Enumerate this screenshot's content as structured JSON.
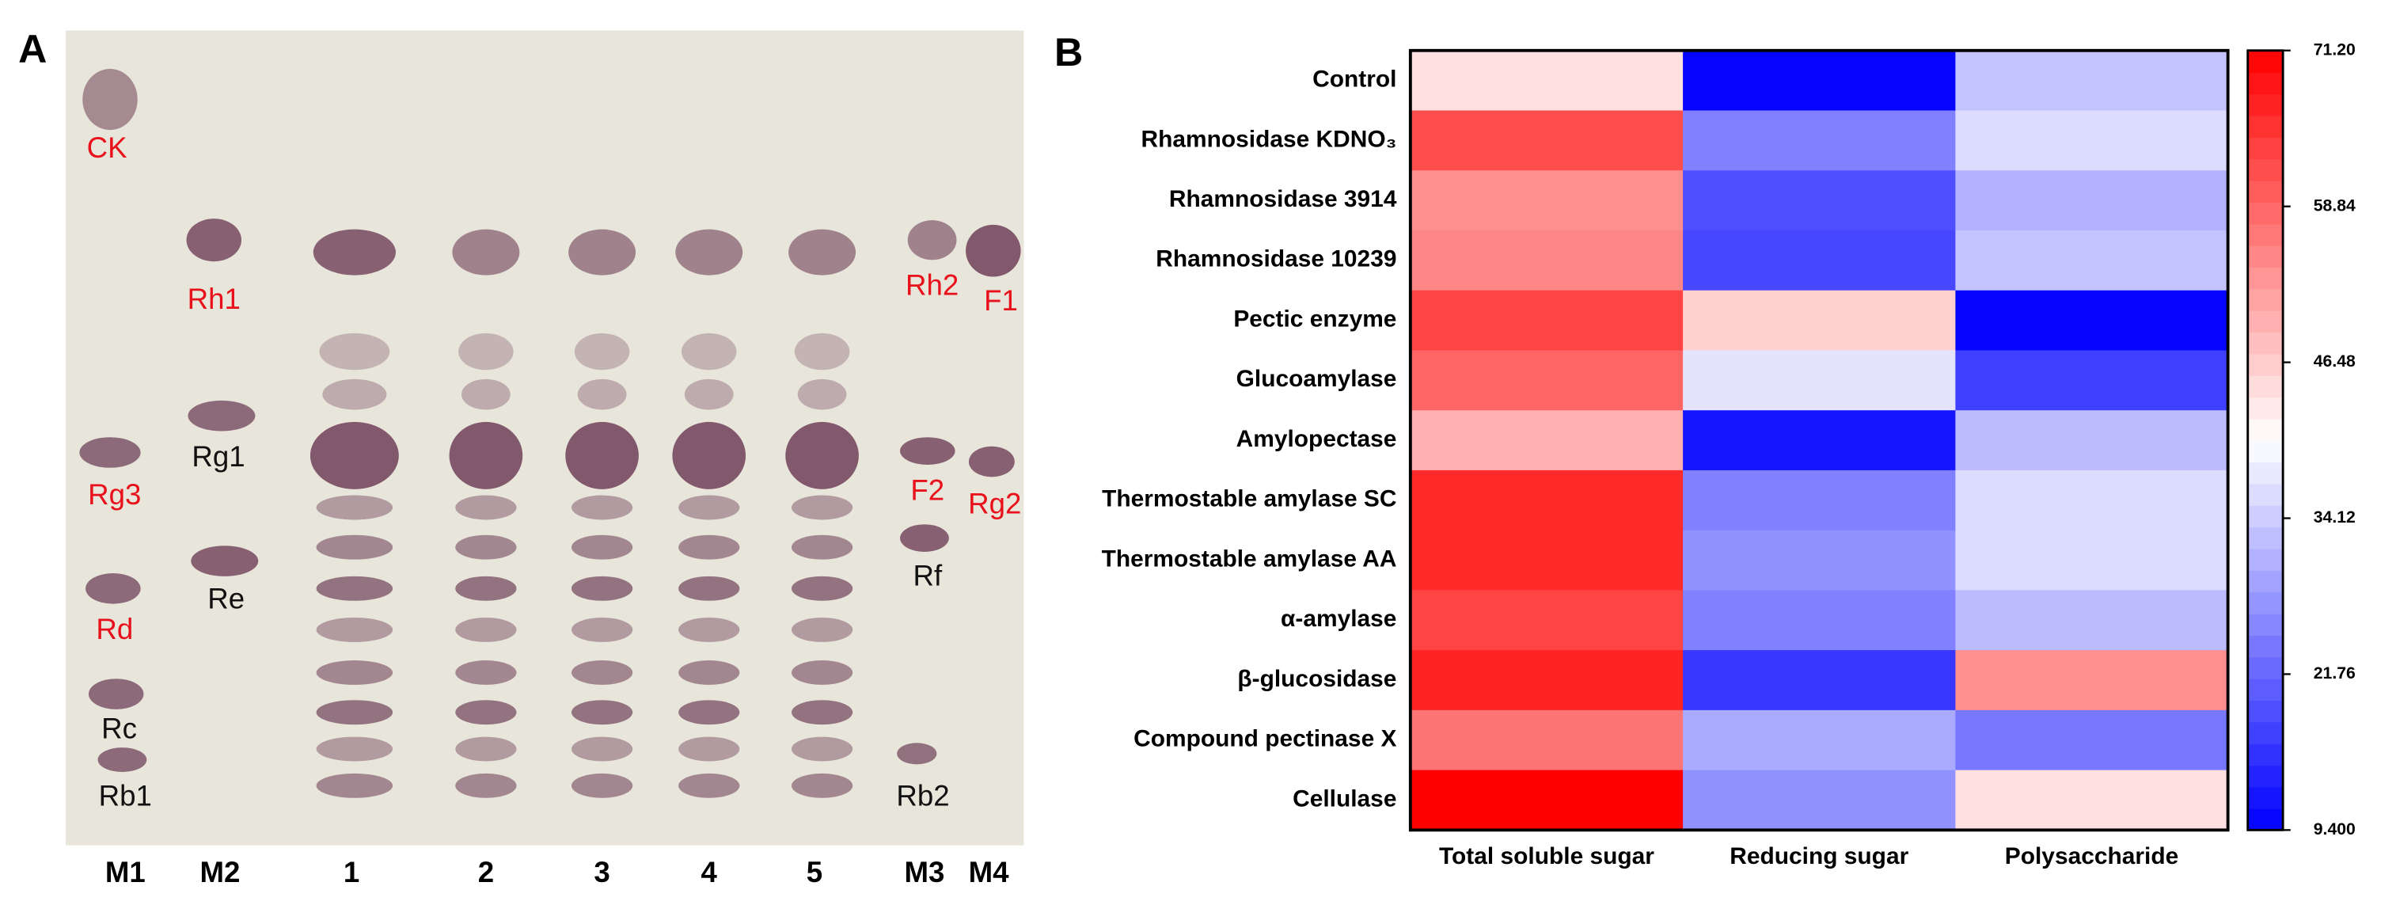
{
  "panel_a": {
    "label": "A",
    "spot_labels": [
      "CK",
      "Rh1",
      "Rg1",
      "Rg3",
      "Re",
      "Rd",
      "Rc",
      "Rb1",
      "Rh2",
      "F1",
      "F2",
      "Rg2",
      "Rf",
      "Rb2"
    ],
    "lane_labels": [
      "M1",
      "M2",
      "1",
      "2",
      "3",
      "4",
      "5",
      "M3",
      "M4"
    ]
  },
  "chart_data": {
    "type": "heatmap",
    "panel_label": "B",
    "rows": [
      "Control",
      "Rhamnosidase KDNO₃",
      "Rhamnosidase 3914",
      "Rhamnosidase 10239",
      "Pectic enzyme",
      "Glucoamylase",
      "Amylopectase",
      "Thermostable amylase SC",
      "Thermostable amylase AA",
      "α-amylase",
      "β-glucosidase",
      "Compound pectinase X",
      "Cellulase"
    ],
    "columns": [
      "Total soluble sugar",
      "Reducing sugar",
      "Polysaccharide"
    ],
    "values": [
      [
        44,
        10,
        33
      ],
      [
        62,
        25,
        36
      ],
      [
        54,
        19,
        31
      ],
      [
        55,
        18,
        33
      ],
      [
        63,
        46,
        10
      ],
      [
        59,
        37,
        17
      ],
      [
        50,
        12,
        32
      ],
      [
        66,
        25,
        36
      ],
      [
        66,
        27,
        36
      ],
      [
        63,
        25,
        32
      ],
      [
        67,
        16,
        54
      ],
      [
        57,
        30,
        24
      ],
      [
        71.2,
        27,
        44
      ]
    ],
    "colors": [
      "#0000ff",
      "#ffffff",
      "#ff0000"
    ],
    "colorbar_lim": [
      9.4,
      71.2
    ],
    "colorbar_ticks": [
      {
        "value": 71.2,
        "label": "71.20"
      },
      58.84,
      46.48,
      34.12,
      21.76,
      {
        "value": 9.4,
        "label": "9.400"
      }
    ]
  }
}
